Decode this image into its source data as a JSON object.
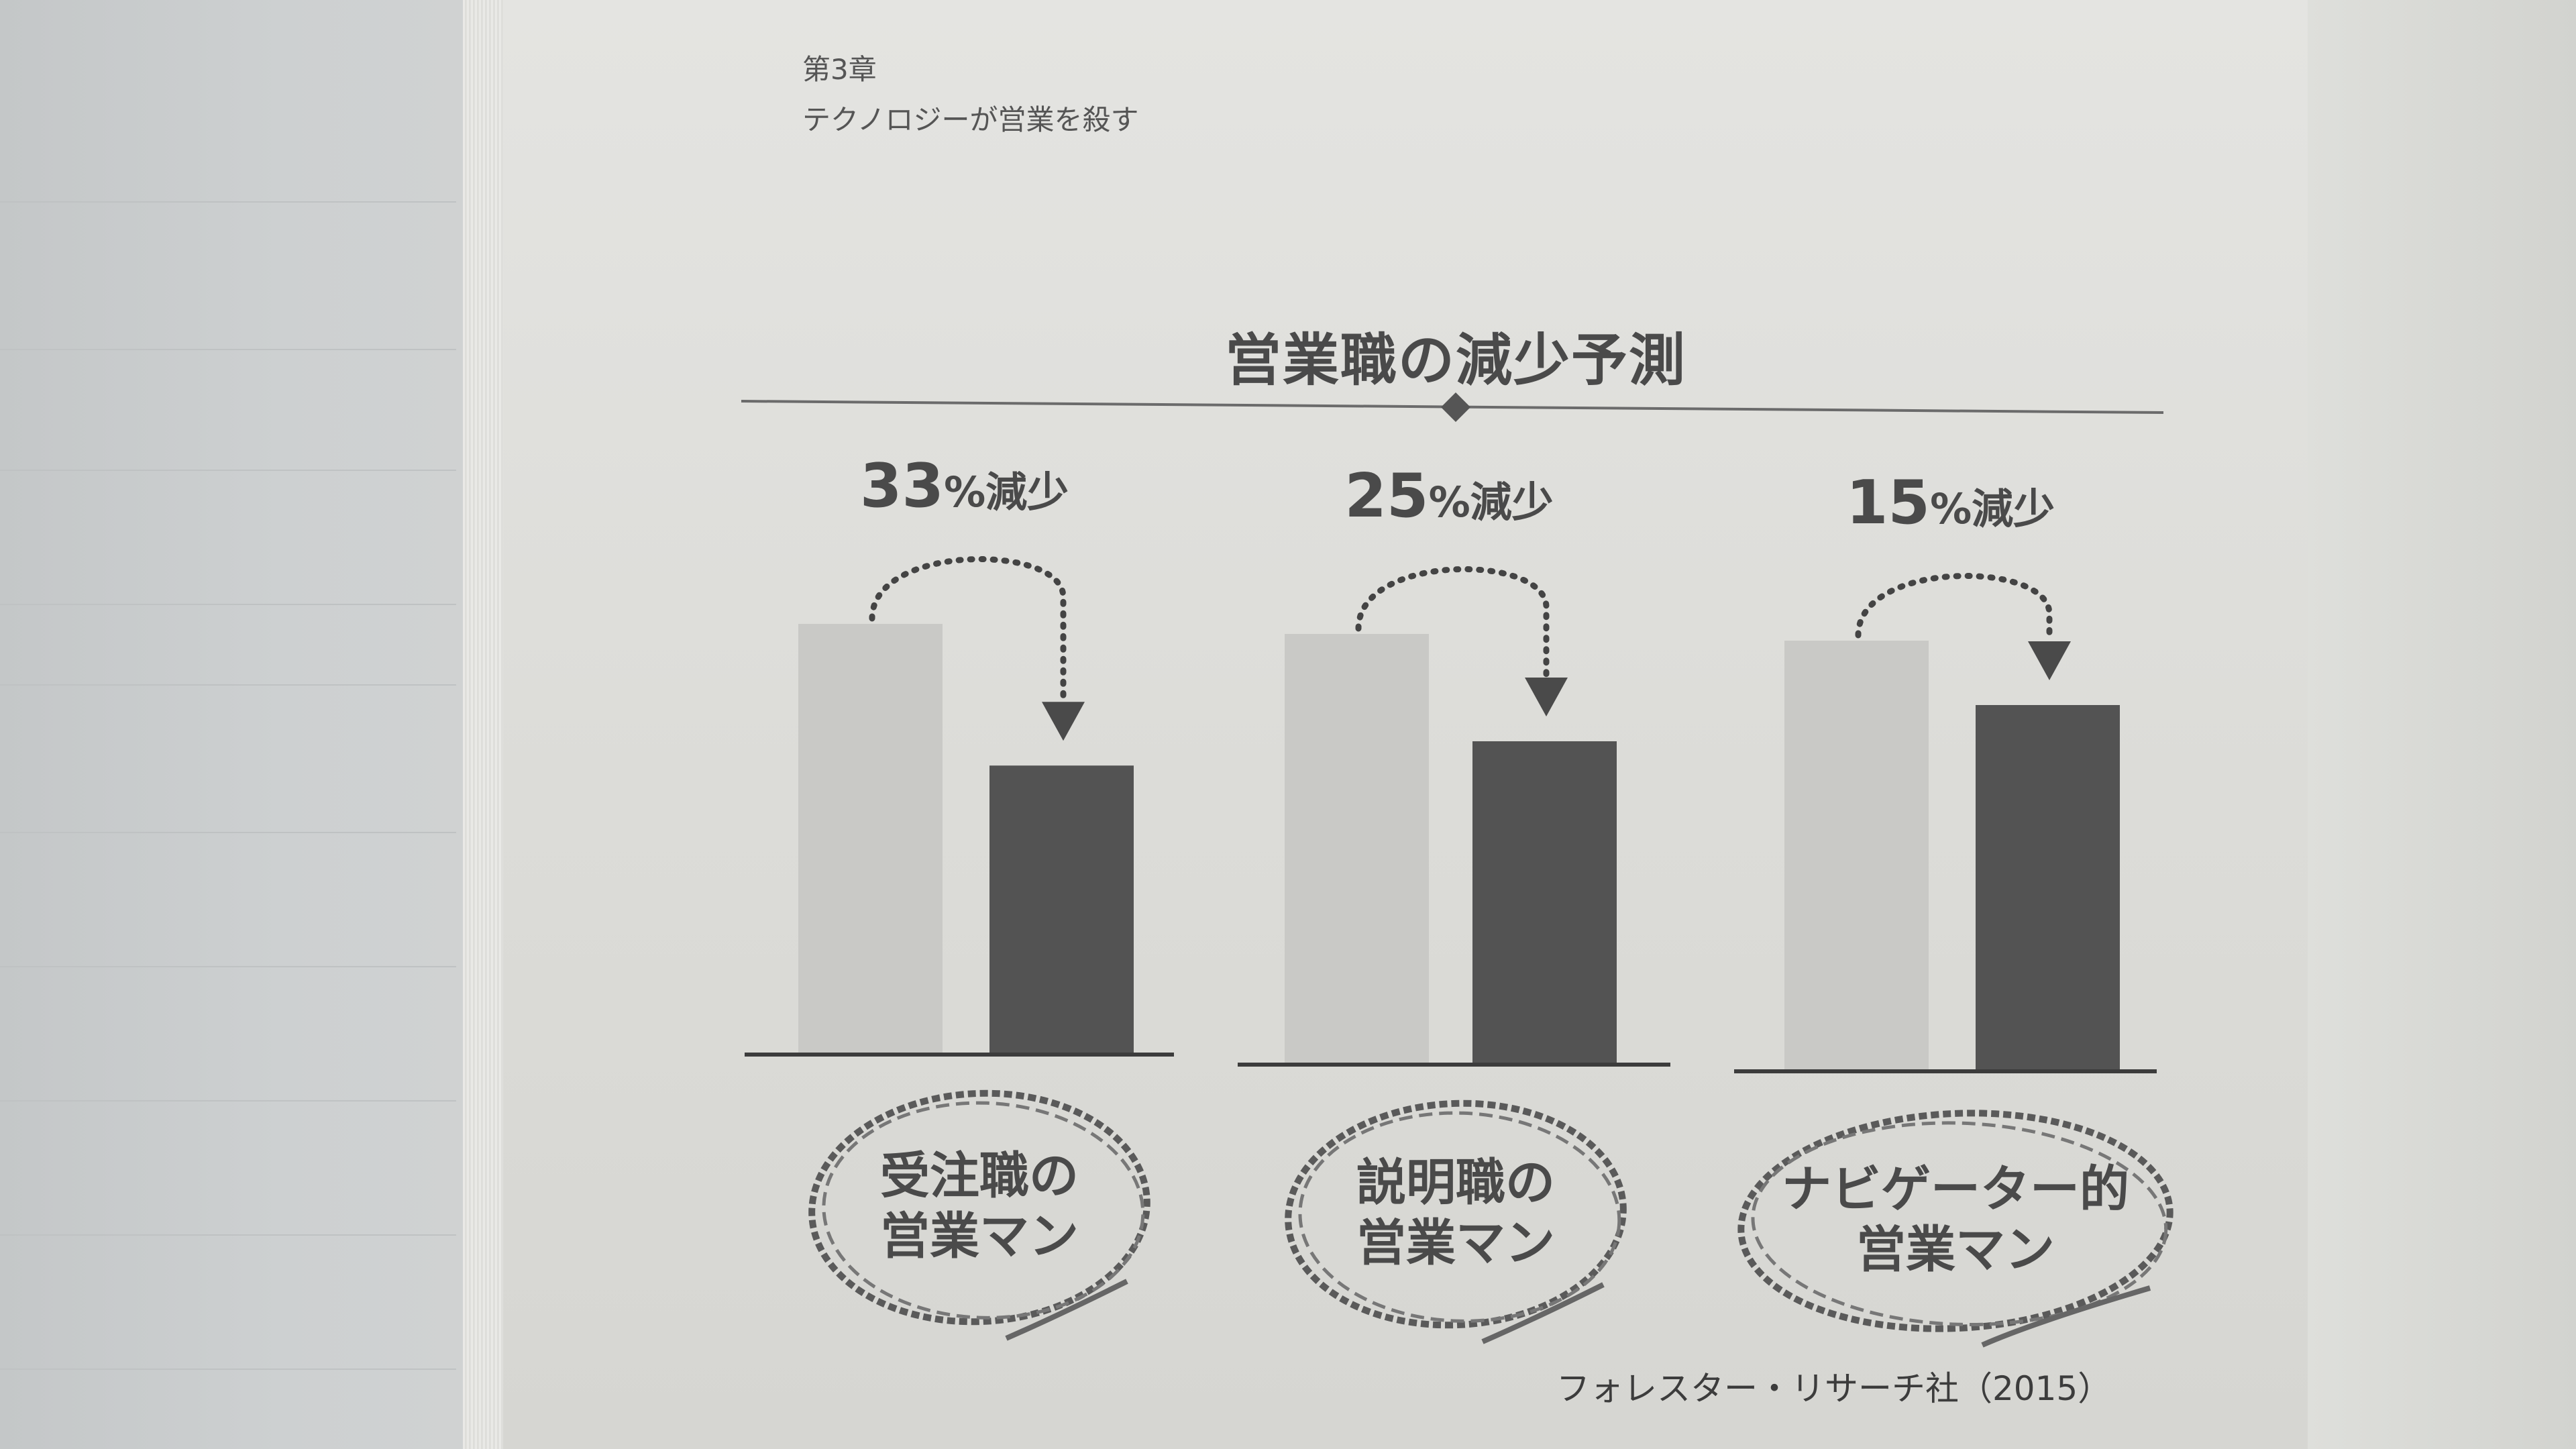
{
  "header": {
    "chapter": "第3章",
    "chapter_title": "テクノロジーが営業を殺す"
  },
  "colors": {
    "before_bar": "#c9c9c6",
    "after_bar": "#535353",
    "title_text": "#4a4a4a"
  },
  "chart_data": {
    "type": "bar",
    "title": "営業職の減少予測",
    "categories": [
      "受注職の営業マン",
      "説明職の営業マン",
      "ナビゲーター的営業マン"
    ],
    "category_labels": [
      [
        "受注職の",
        "営業マン"
      ],
      [
        "説明職の",
        "営業マン"
      ],
      [
        "ナビゲーター的",
        "営業マン"
      ]
    ],
    "series": [
      {
        "values": [
          100,
          100,
          100
        ]
      },
      {
        "values": [
          67,
          75,
          85
        ]
      }
    ],
    "annotations": [
      {
        "number": "33",
        "unit": "%減少"
      },
      {
        "number": "25",
        "unit": "%減少"
      },
      {
        "number": "15",
        "unit": "%減少"
      }
    ],
    "ylim": [
      0,
      100
    ],
    "grid": false,
    "legend": "none",
    "source": "フォレスター・リサーチ社（2015）"
  }
}
